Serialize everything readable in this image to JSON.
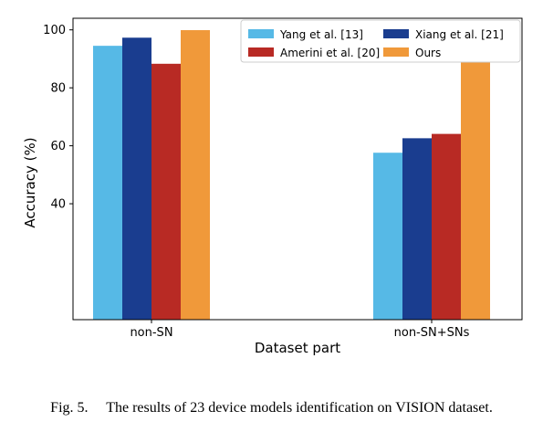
{
  "chart_data": {
    "type": "bar",
    "categories": [
      "non-SN",
      "non-SN+SNs"
    ],
    "series": [
      {
        "name": "Yang et al. [13]",
        "color": "#56b9e6",
        "values": [
          94.5,
          57.6
        ]
      },
      {
        "name": "Xiang et al. [21]",
        "color": "#1a3d8f",
        "values": [
          97.3,
          62.6
        ]
      },
      {
        "name": "Amerini et al. [20]",
        "color": "#b82a24",
        "values": [
          88.3,
          64.1
        ]
      },
      {
        "name": "Ours",
        "color": "#f0993a",
        "values": [
          99.9,
          89.6
        ]
      }
    ],
    "xlabel": "Dataset part",
    "ylabel": "Accuracy (%)",
    "yticks": [
      40,
      60,
      80,
      100
    ],
    "ylim": [
      0,
      104
    ],
    "grid": false,
    "legend_position": "top-right",
    "legend_columns": 2
  },
  "caption": "Fig. 5.  The results of 23 device models identification on VISION dataset."
}
